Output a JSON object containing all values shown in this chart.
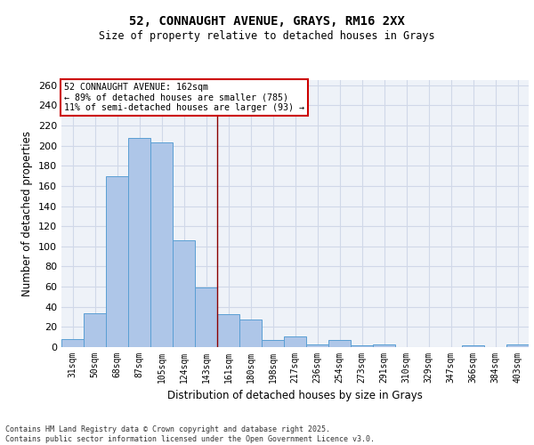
{
  "title_line1": "52, CONNAUGHT AVENUE, GRAYS, RM16 2XX",
  "title_line2": "Size of property relative to detached houses in Grays",
  "xlabel": "Distribution of detached houses by size in Grays",
  "ylabel": "Number of detached properties",
  "categories": [
    "31sqm",
    "50sqm",
    "68sqm",
    "87sqm",
    "105sqm",
    "124sqm",
    "143sqm",
    "161sqm",
    "180sqm",
    "198sqm",
    "217sqm",
    "236sqm",
    "254sqm",
    "273sqm",
    "291sqm",
    "310sqm",
    "329sqm",
    "347sqm",
    "366sqm",
    "384sqm",
    "403sqm"
  ],
  "values": [
    8,
    34,
    170,
    208,
    203,
    106,
    59,
    33,
    27,
    7,
    11,
    3,
    7,
    2,
    3,
    0,
    0,
    0,
    2,
    0,
    3
  ],
  "bar_color": "#aec6e8",
  "bar_edge_color": "#5a9fd4",
  "property_line_x": 7,
  "annotation_text": "52 CONNAUGHT AVENUE: 162sqm\n← 89% of detached houses are smaller (785)\n11% of semi-detached houses are larger (93) →",
  "annotation_box_color": "#ffffff",
  "annotation_box_edge": "#cc0000",
  "vline_color": "#8b0000",
  "grid_color": "#d0d8e8",
  "bg_color": "#eef2f8",
  "footer_line1": "Contains HM Land Registry data © Crown copyright and database right 2025.",
  "footer_line2": "Contains public sector information licensed under the Open Government Licence v3.0.",
  "ylim": [
    0,
    265
  ],
  "yticks": [
    0,
    20,
    40,
    60,
    80,
    100,
    120,
    140,
    160,
    180,
    200,
    220,
    240,
    260
  ]
}
